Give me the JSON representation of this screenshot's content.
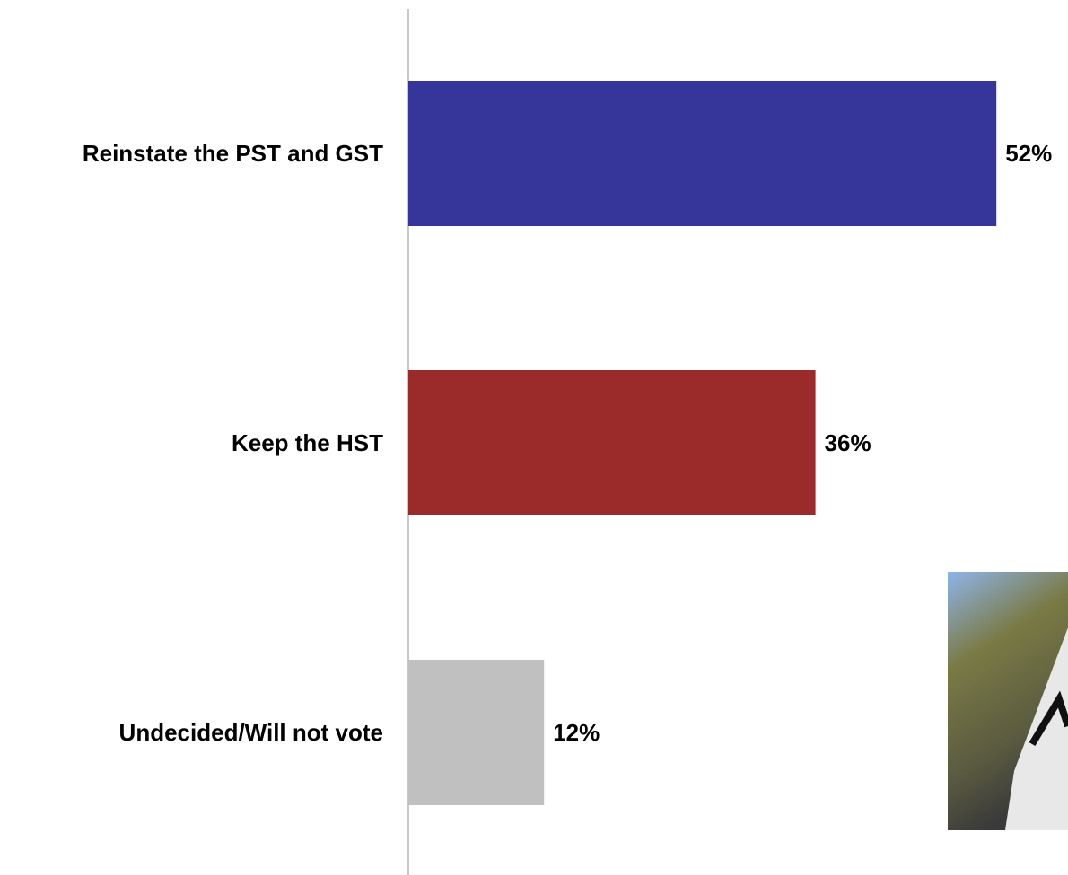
{
  "chart_data": {
    "type": "hbar",
    "categories": [
      "Reinstate the PST and GST",
      "Keep the HST",
      "Undecided/Will not vote"
    ],
    "values": [
      52,
      36,
      12
    ],
    "value_labels": [
      "52%",
      "36%",
      "12%"
    ],
    "colors": [
      "#36369a",
      "#9b2a2b",
      "#c0c0c0"
    ],
    "xlim": [
      0,
      55
    ]
  }
}
